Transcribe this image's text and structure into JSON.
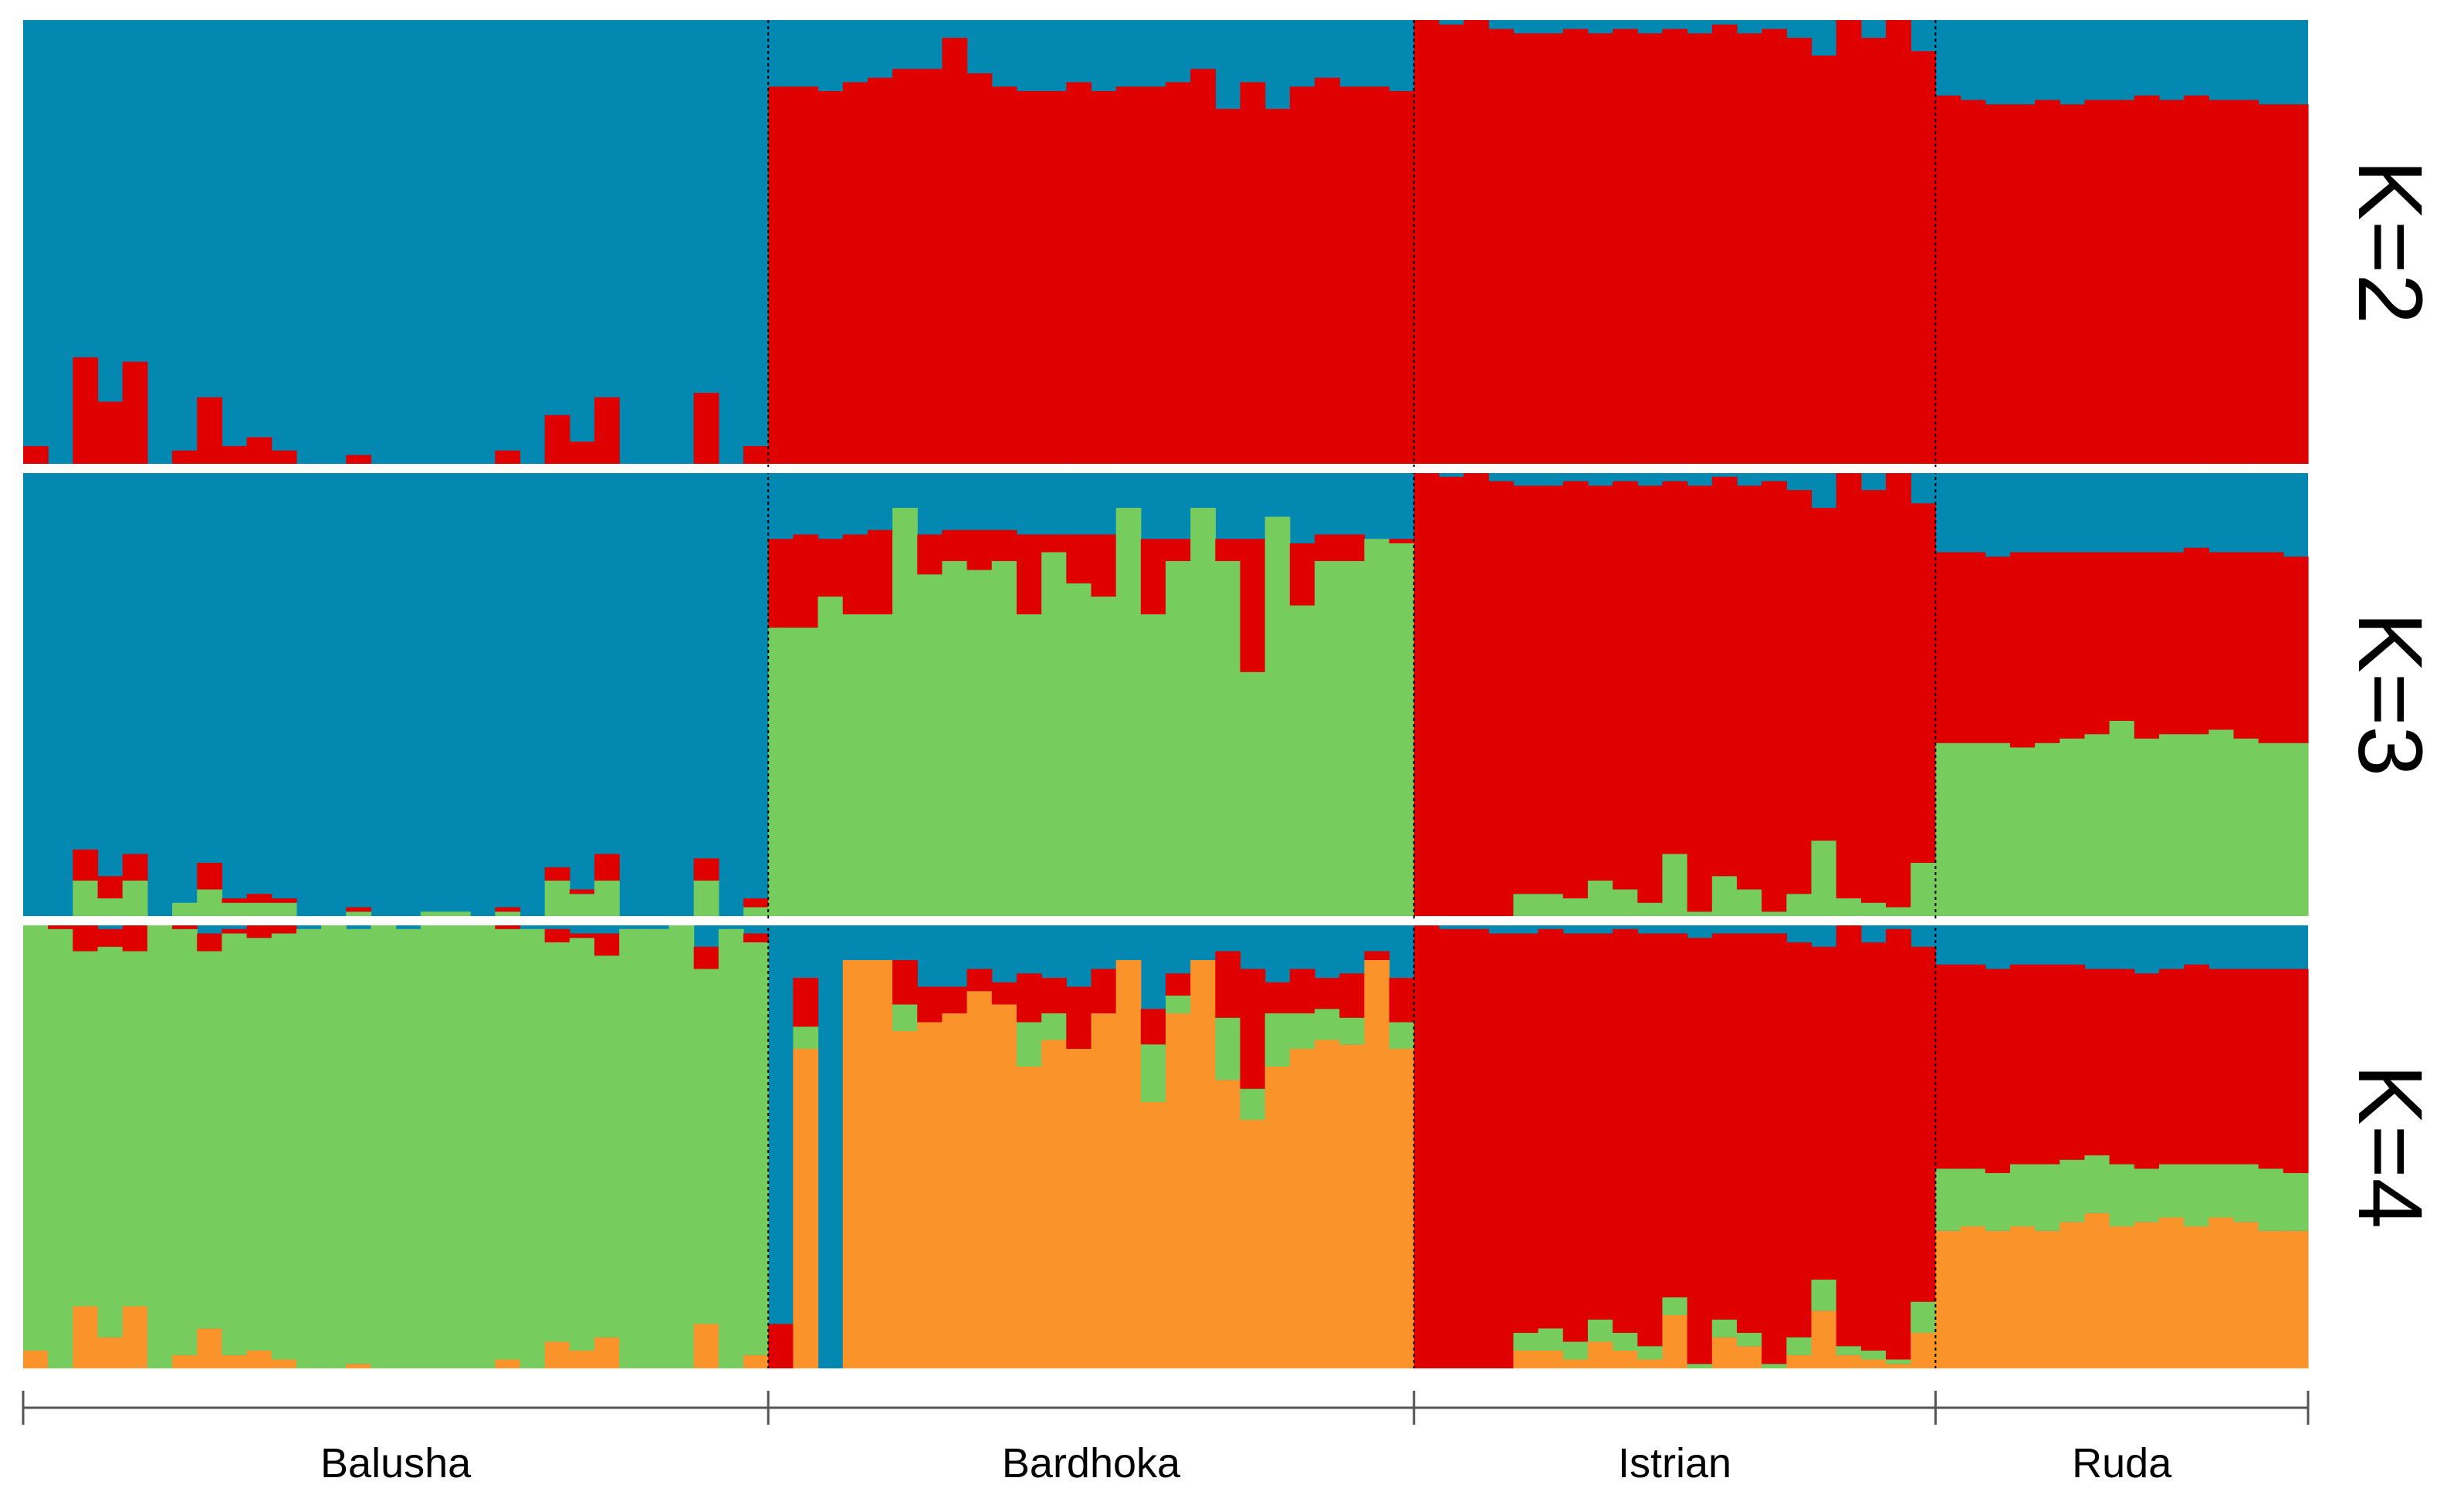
{
  "chart_data": {
    "type": "stacked-bar",
    "title": "",
    "colors": {
      "blue": "#0288b1",
      "red": "#df0000",
      "green": "#77cc5e",
      "orange": "#fb932b",
      "divider": "#000000",
      "axis": "#555555",
      "separator": "#ffffff"
    },
    "populations": [
      {
        "name": "Balusha",
        "count": 30
      },
      {
        "name": "Bardhoka",
        "count": 26
      },
      {
        "name": "Istrian",
        "count": 21
      },
      {
        "name": "Ruda",
        "count": 15
      }
    ],
    "panels": [
      {
        "label": "K=2",
        "series": [
          "red",
          "blue"
        ],
        "values": {
          "red": [
            0.04,
            0,
            0.24,
            0.14,
            0.23,
            0,
            0.03,
            0.15,
            0.04,
            0.06,
            0.03,
            0,
            0,
            0.02,
            0,
            0,
            0,
            0,
            0,
            0.03,
            0,
            0.11,
            0.05,
            0.15,
            0,
            0,
            0,
            0.16,
            0,
            0.04,
            0.85,
            0.85,
            0.84,
            0.86,
            0.87,
            0.89,
            0.89,
            0.96,
            0.88,
            0.85,
            0.84,
            0.84,
            0.86,
            0.84,
            0.85,
            0.85,
            0.86,
            0.89,
            0.8,
            0.86,
            0.8,
            0.85,
            0.87,
            0.85,
            0.85,
            0.84,
            1,
            0.99,
            1,
            0.98,
            0.97,
            0.97,
            0.98,
            0.97,
            0.98,
            0.97,
            0.98,
            0.97,
            0.99,
            0.97,
            0.98,
            0.96,
            0.92,
            1,
            0.96,
            1,
            0.93,
            0.83,
            0.82,
            0.81,
            0.81,
            0.82,
            0.81,
            0.82,
            0.82,
            0.83,
            0.82,
            0.83,
            0.82,
            0.82,
            0.81,
            0.81
          ]
        }
      },
      {
        "label": "K=3",
        "series": [
          "green",
          "red",
          "blue"
        ],
        "values": {
          "green": [
            0,
            0,
            0.08,
            0.04,
            0.08,
            0,
            0.03,
            0.06,
            0.03,
            0.03,
            0.03,
            0,
            0,
            0.01,
            0,
            0,
            0.01,
            0.01,
            0,
            0.01,
            0,
            0.08,
            0.05,
            0.08,
            0,
            0,
            0,
            0.08,
            0,
            0.02,
            0.65,
            0.65,
            0.72,
            0.68,
            0.68,
            0.92,
            0.77,
            0.8,
            0.78,
            0.8,
            0.68,
            0.82,
            0.75,
            0.72,
            0.92,
            0.68,
            0.8,
            0.92,
            0.8,
            0.55,
            0.9,
            0.7,
            0.8,
            0.8,
            0.85,
            0.84,
            0,
            0,
            0,
            0,
            0.05,
            0.05,
            0.04,
            0.08,
            0.06,
            0.03,
            0.14,
            0.01,
            0.09,
            0.06,
            0.01,
            0.05,
            0.17,
            0.04,
            0.03,
            0.02,
            0.12,
            0.39,
            0.39,
            0.39,
            0.38,
            0.39,
            0.4,
            0.41,
            0.44,
            0.4,
            0.41,
            0.41,
            0.42,
            0.4,
            0.39,
            0.39
          ],
          "red": [
            0,
            0,
            0.07,
            0.05,
            0.06,
            0,
            0,
            0.06,
            0.01,
            0.02,
            0.01,
            0,
            0,
            0.01,
            0,
            0,
            0,
            0,
            0,
            0.01,
            0,
            0.03,
            0.01,
            0.06,
            0,
            0,
            0,
            0.05,
            0,
            0.02,
            0.2,
            0.21,
            0.13,
            0.18,
            0.19,
            0,
            0.09,
            0.07,
            0.09,
            0.07,
            0.18,
            0.04,
            0.11,
            0.14,
            0,
            0.17,
            0.05,
            0,
            0.05,
            0.3,
            0,
            0.14,
            0.06,
            0.06,
            0,
            0.01,
            1,
            0.99,
            1,
            0.98,
            0.92,
            0.92,
            0.94,
            0.89,
            0.92,
            0.94,
            0.84,
            0.96,
            0.9,
            0.91,
            0.97,
            0.91,
            0.75,
            0.96,
            0.93,
            0.98,
            0.81,
            0.43,
            0.43,
            0.42,
            0.44,
            0.43,
            0.42,
            0.41,
            0.38,
            0.42,
            0.41,
            0.42,
            0.4,
            0.42,
            0.43,
            0.42
          ]
        }
      },
      {
        "label": "K=4",
        "series": [
          "orange",
          "green",
          "red",
          "blue"
        ],
        "values": {
          "orange": [
            0.04,
            0,
            0.14,
            0.07,
            0.14,
            0,
            0.03,
            0.09,
            0.03,
            0.04,
            0.02,
            0,
            0,
            0.01,
            0,
            0,
            0,
            0,
            0,
            0.02,
            0,
            0.06,
            0.04,
            0.07,
            0,
            0,
            0,
            0.1,
            0,
            0.03,
            0,
            0.72,
            0,
            0.92,
            0.92,
            0.76,
            0.78,
            0.8,
            0.85,
            0.82,
            0.68,
            0.74,
            0.72,
            0.8,
            0.92,
            0.6,
            0.8,
            0.92,
            0.65,
            0.56,
            0.68,
            0.72,
            0.74,
            0.73,
            0.92,
            0.72,
            0,
            0,
            0,
            0,
            0.04,
            0.04,
            0.02,
            0.06,
            0.04,
            0.02,
            0.12,
            0,
            0.07,
            0.05,
            0,
            0.03,
            0.13,
            0.03,
            0.02,
            0.01,
            0.08,
            0.31,
            0.32,
            0.31,
            0.32,
            0.31,
            0.33,
            0.35,
            0.32,
            0.33,
            0.34,
            0.32,
            0.34,
            0.33,
            0.31,
            0.31
          ],
          "green": [
            0.96,
            0.99,
            0.8,
            0.88,
            0.8,
            1,
            0.96,
            0.85,
            0.95,
            0.93,
            0.96,
            0.99,
            1,
            0.98,
            1,
            0.99,
            1,
            1,
            1,
            0.97,
            0.99,
            0.9,
            0.93,
            0.86,
            0.99,
            0.99,
            1,
            0.8,
            0.99,
            0.93,
            0,
            0.05,
            0,
            0,
            0,
            0.06,
            0,
            0,
            0,
            0,
            0.1,
            0.06,
            0,
            0,
            0,
            0.13,
            0.04,
            0,
            0.14,
            0.07,
            0.12,
            0.08,
            0.07,
            0.06,
            0,
            0.06,
            0,
            0,
            0,
            0,
            0.04,
            0.05,
            0.04,
            0.05,
            0.04,
            0.03,
            0.04,
            0.01,
            0.04,
            0.03,
            0.01,
            0.04,
            0.07,
            0.02,
            0.02,
            0.01,
            0.07,
            0.14,
            0.13,
            0.13,
            0.14,
            0.15,
            0.14,
            0.13,
            0.14,
            0.12,
            0.12,
            0.14,
            0.12,
            0.13,
            0.14,
            0.13
          ],
          "red": [
            0,
            0.01,
            0.07,
            0.04,
            0.06,
            0,
            0.01,
            0.04,
            0.01,
            0.03,
            0.02,
            0,
            0,
            0,
            0,
            0,
            0,
            0,
            0,
            0.01,
            0,
            0.03,
            0.01,
            0.05,
            0,
            0,
            0,
            0.05,
            0,
            0.02,
            0.1,
            0.11,
            0,
            0,
            0,
            0.1,
            0.08,
            0.06,
            0.05,
            0.05,
            0.11,
            0.08,
            0.14,
            0.1,
            0,
            0.08,
            0.05,
            0,
            0.15,
            0.27,
            0.07,
            0.1,
            0.07,
            0.1,
            0.02,
            0.1,
            1,
            0.99,
            0.99,
            0.98,
            0.9,
            0.9,
            0.92,
            0.87,
            0.91,
            0.93,
            0.82,
            0.96,
            0.87,
            0.9,
            0.97,
            0.89,
            0.75,
            0.95,
            0.92,
            0.97,
            0.8,
            0.46,
            0.46,
            0.46,
            0.45,
            0.45,
            0.44,
            0.42,
            0.44,
            0.44,
            0.44,
            0.45,
            0.44,
            0.44,
            0.45,
            0.46
          ]
        }
      }
    ]
  }
}
